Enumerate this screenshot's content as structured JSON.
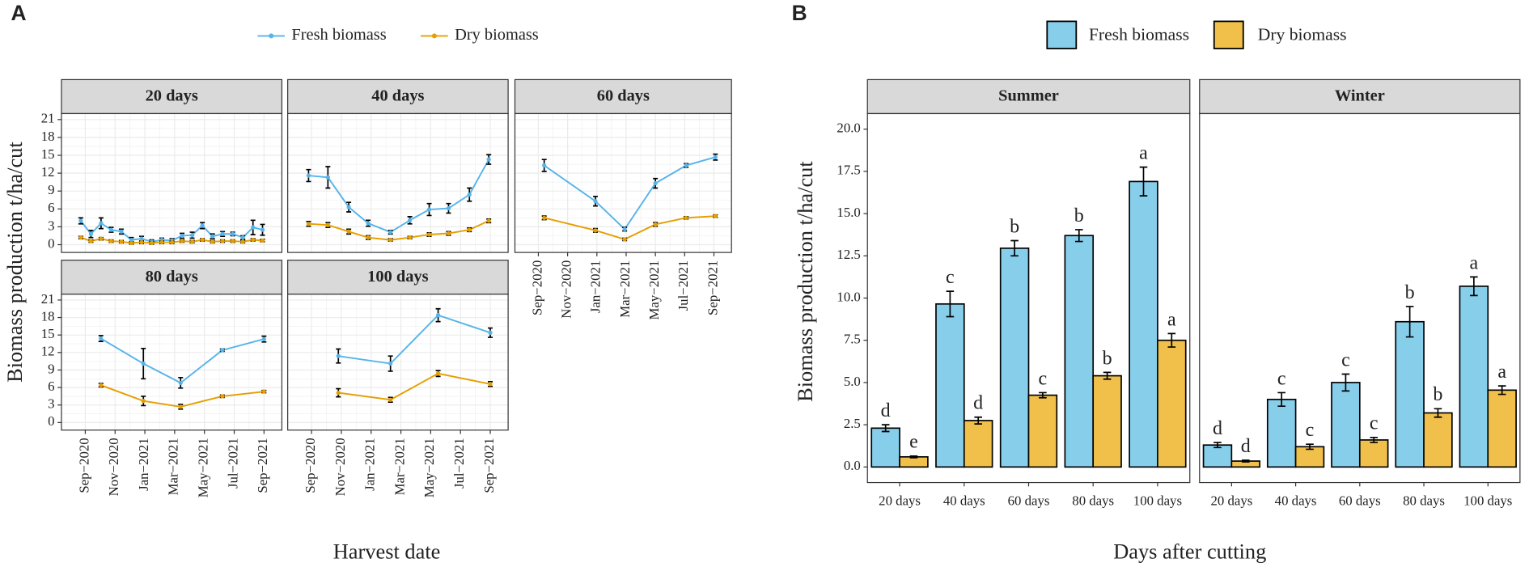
{
  "chart_data": [
    {
      "type": "line",
      "panel_label": "A",
      "xlabel": "Harvest date",
      "ylabel": "Biomass production t/ha/cut",
      "xlim": [
        -1.6,
        13.2
      ],
      "xticks": [
        {
          "value": 0,
          "label": "Sep−2020"
        },
        {
          "value": 2,
          "label": "Nov−2020"
        },
        {
          "value": 4,
          "label": "Jan−2021"
        },
        {
          "value": 6,
          "label": "Mar−2021"
        },
        {
          "value": 8,
          "label": "May−2021"
        },
        {
          "value": 10,
          "label": "Jul−2021"
        },
        {
          "value": 12,
          "label": "Sep−2021"
        }
      ],
      "ylim": [
        -1.3,
        22
      ],
      "yticks": [
        0,
        3,
        6,
        9,
        12,
        15,
        18,
        21
      ],
      "grid": true,
      "legend": "top",
      "facets": [
        {
          "title": "20 days",
          "x": [
            -0.3,
            0.38,
            1.06,
            1.74,
            2.42,
            3.1,
            3.78,
            4.46,
            5.14,
            5.82,
            6.5,
            7.18,
            7.86,
            8.54,
            9.22,
            9.9,
            10.58,
            11.26,
            11.9
          ],
          "series": [
            {
              "name": "Fresh biomass",
              "color": "#56b4e9",
              "values": [
                4.0,
                1.8,
                3.6,
                2.5,
                2.2,
                0.8,
                1.0,
                0.5,
                0.8,
                0.7,
                1.5,
                1.6,
                3.2,
                1.4,
                1.8,
                1.8,
                1.2,
                2.9,
                2.5
              ],
              "errors": [
                0.5,
                0.6,
                0.9,
                0.4,
                0.4,
                0.4,
                0.4,
                0.3,
                0.3,
                0.3,
                0.4,
                0.5,
                0.5,
                0.4,
                0.4,
                0.3,
                0.3,
                1.2,
                0.9
              ]
            },
            {
              "name": "Dry biomass",
              "color": "#e69f00",
              "values": [
                1.2,
                0.6,
                1.0,
                0.6,
                0.5,
                0.3,
                0.4,
                0.3,
                0.4,
                0.4,
                0.6,
                0.5,
                0.8,
                0.5,
                0.6,
                0.6,
                0.5,
                0.8,
                0.7
              ],
              "errors": [
                0.2,
                0.2,
                0.2,
                0.2,
                0.2,
                0.2,
                0.2,
                0.2,
                0.2,
                0.2,
                0.2,
                0.2,
                0.2,
                0.2,
                0.2,
                0.2,
                0.2,
                0.2,
                0.2
              ]
            }
          ]
        },
        {
          "title": "40 days",
          "x": [
            -0.2,
            1.1,
            2.5,
            3.8,
            5.3,
            6.6,
            7.9,
            9.2,
            10.6,
            11.9
          ],
          "series": [
            {
              "name": "Fresh biomass",
              "color": "#56b4e9",
              "values": [
                11.6,
                11.3,
                6.3,
                3.6,
                2.1,
                4.1,
                5.9,
                6.1,
                8.4,
                14.3
              ],
              "errors": [
                1.0,
                1.8,
                0.8,
                0.5,
                0.3,
                0.6,
                1.0,
                0.8,
                1.1,
                0.8
              ]
            },
            {
              "name": "Dry biomass",
              "color": "#e69f00",
              "values": [
                3.5,
                3.3,
                2.2,
                1.2,
                0.8,
                1.2,
                1.7,
                1.9,
                2.5,
                4.0
              ],
              "errors": [
                0.4,
                0.4,
                0.4,
                0.3,
                0.2,
                0.2,
                0.3,
                0.3,
                0.3,
                0.3
              ]
            }
          ]
        },
        {
          "title": "60 days",
          "x": [
            0.4,
            3.9,
            5.9,
            8.0,
            10.1,
            12.1
          ],
          "series": [
            {
              "name": "Fresh biomass",
              "color": "#56b4e9",
              "values": [
                13.3,
                7.3,
                2.6,
                10.3,
                13.3,
                14.7
              ],
              "errors": [
                1.0,
                0.8,
                0.3,
                0.8,
                0.3,
                0.5
              ]
            },
            {
              "name": "Dry biomass",
              "color": "#e69f00",
              "values": [
                4.5,
                2.4,
                0.9,
                3.4,
                4.5,
                4.8
              ],
              "errors": [
                0.3,
                0.3,
                0.2,
                0.3,
                0.2,
                0.2
              ]
            }
          ]
        },
        {
          "title": "80 days",
          "x": [
            1.05,
            3.9,
            6.4,
            9.2,
            12.0
          ],
          "series": [
            {
              "name": "Fresh biomass",
              "color": "#56b4e9",
              "values": [
                14.4,
                10.1,
                6.8,
                12.4,
                14.3
              ],
              "errors": [
                0.5,
                2.6,
                0.9,
                0.2,
                0.5
              ]
            },
            {
              "name": "Dry biomass",
              "color": "#e69f00",
              "values": [
                6.4,
                3.7,
                2.7,
                4.5,
                5.3
              ],
              "errors": [
                0.3,
                0.8,
                0.4,
                0.2,
                0.2
              ]
            }
          ]
        },
        {
          "title": "100 days",
          "x": [
            1.8,
            5.3,
            8.5,
            12.0
          ],
          "series": [
            {
              "name": "Fresh biomass",
              "color": "#56b4e9",
              "values": [
                11.4,
                10.1,
                18.4,
                15.4
              ],
              "errors": [
                1.2,
                1.3,
                1.1,
                0.8
              ]
            },
            {
              "name": "Dry biomass",
              "color": "#e69f00",
              "values": [
                5.1,
                3.9,
                8.4,
                6.6
              ],
              "errors": [
                0.7,
                0.4,
                0.5,
                0.4
              ]
            }
          ]
        }
      ]
    },
    {
      "type": "bar",
      "panel_label": "B",
      "xlabel": "Days after cutting",
      "ylabel": "Biomass production t/ha/cut",
      "ylim": [
        -0.92,
        20.92
      ],
      "yticks": [
        {
          "value": 0,
          "label": "0.0"
        },
        {
          "value": 2.5,
          "label": "2.5"
        },
        {
          "value": 5,
          "label": "5.0"
        },
        {
          "value": 7.5,
          "label": "7.5"
        },
        {
          "value": 10,
          "label": "10.0"
        },
        {
          "value": 12.5,
          "label": "12.5"
        },
        {
          "value": 15,
          "label": "15.0"
        },
        {
          "value": 17.5,
          "label": "17.5"
        },
        {
          "value": 20,
          "label": "20.0"
        }
      ],
      "grid": false,
      "legend": "top",
      "facets": [
        {
          "title": "Summer",
          "categories": [
            "20 days",
            "40 days",
            "60 days",
            "80 days",
            "100 days"
          ],
          "series": [
            {
              "name": "Fresh biomass",
              "color": "#87ceeb",
              "values": [
                2.3,
                9.65,
                12.95,
                13.7,
                16.9
              ],
              "errors": [
                0.2,
                0.75,
                0.45,
                0.35,
                0.85
              ],
              "letters": [
                "d",
                "c",
                "b",
                "b",
                "a"
              ]
            },
            {
              "name": "Dry biomass",
              "color": "#f0c04a",
              "values": [
                0.6,
                2.75,
                4.25,
                5.4,
                7.5
              ],
              "errors": [
                0.05,
                0.2,
                0.15,
                0.2,
                0.4
              ],
              "letters": [
                "e",
                "d",
                "c",
                "b",
                "a"
              ]
            }
          ]
        },
        {
          "title": "Winter",
          "categories": [
            "20 days",
            "40 days",
            "60 days",
            "80 days",
            "100 days"
          ],
          "series": [
            {
              "name": "Fresh biomass",
              "color": "#87ceeb",
              "values": [
                1.3,
                4.0,
                5.0,
                8.6,
                10.7
              ],
              "errors": [
                0.15,
                0.4,
                0.5,
                0.9,
                0.55
              ],
              "letters": [
                "d",
                "c",
                "c",
                "b",
                "a"
              ]
            },
            {
              "name": "Dry biomass",
              "color": "#f0c04a",
              "values": [
                0.35,
                1.2,
                1.6,
                3.2,
                4.55
              ],
              "errors": [
                0.05,
                0.15,
                0.15,
                0.25,
                0.25
              ],
              "letters": [
                "d",
                "c",
                "c",
                "b",
                "a"
              ]
            }
          ]
        }
      ]
    }
  ]
}
